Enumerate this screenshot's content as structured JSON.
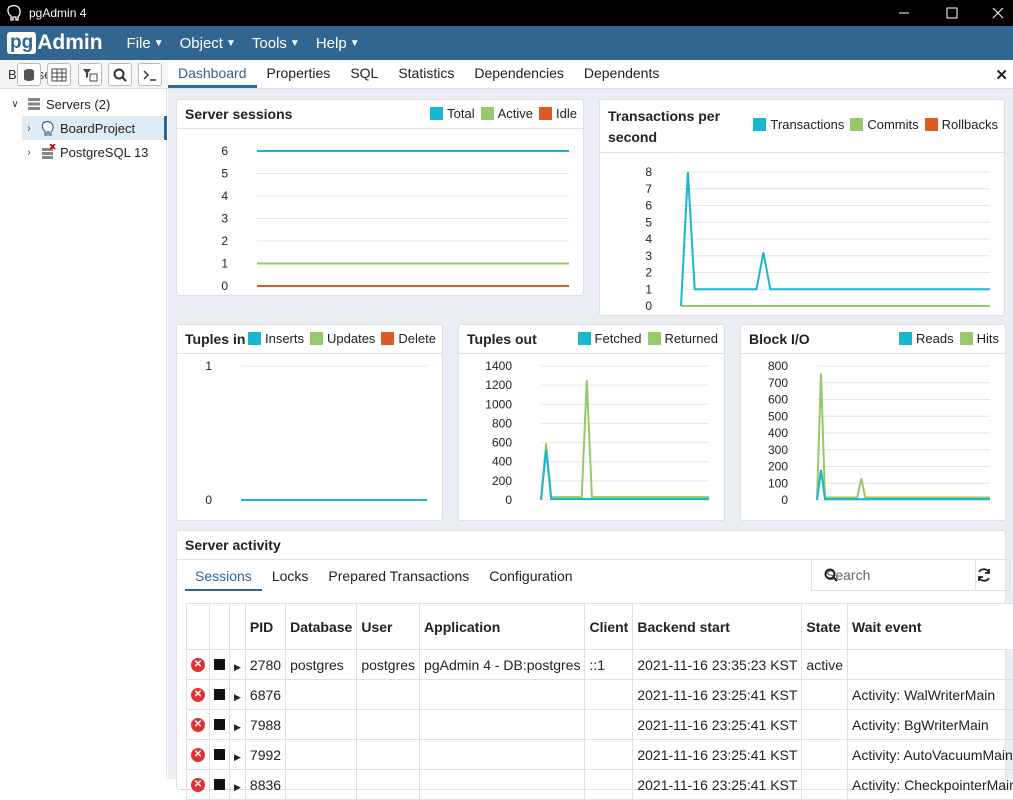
{
  "window": {
    "title": "pgAdmin 4"
  },
  "menubar": {
    "logo_pg": "pg",
    "logo_admin": "Admin",
    "items": [
      "File",
      "Object",
      "Tools",
      "Help"
    ]
  },
  "browser": {
    "label": "Browser",
    "tree": [
      {
        "label": "Servers (2)"
      },
      {
        "label": "BoardProject"
      },
      {
        "label": "PostgreSQL 13"
      }
    ]
  },
  "tabs": [
    "Dashboard",
    "Properties",
    "SQL",
    "Statistics",
    "Dependencies",
    "Dependents"
  ],
  "colors": {
    "brand": "#326690",
    "total": "#17b8cf",
    "active": "#97c96a",
    "idle": "#e05a26"
  },
  "panels": {
    "sessions": {
      "title": "Server sessions",
      "legend": [
        "Total",
        "Active",
        "Idle"
      ]
    },
    "tps": {
      "title": "Transactions per second",
      "legend": [
        "Transactions",
        "Commits",
        "Rollbacks"
      ]
    },
    "tuples_in": {
      "title": "Tuples in",
      "legend": [
        "Inserts",
        "Updates",
        "Delete"
      ]
    },
    "tuples_out": {
      "title": "Tuples out",
      "legend": [
        "Fetched",
        "Returned"
      ]
    },
    "block_io": {
      "title": "Block I/O",
      "legend": [
        "Reads",
        "Hits"
      ]
    }
  },
  "chart_data": [
    {
      "type": "line",
      "title": "Server sessions",
      "ylim": [
        0,
        6
      ],
      "yticks": [
        "6",
        "5",
        "4",
        "3",
        "2",
        "1",
        "0"
      ],
      "series": [
        {
          "name": "Total",
          "values": [
            6,
            6,
            6,
            6,
            6,
            6,
            6,
            6,
            6,
            6,
            6,
            6,
            6,
            6,
            6,
            6,
            6,
            6,
            6,
            6,
            6,
            6,
            6,
            6,
            6,
            6,
            6,
            6,
            6,
            6
          ]
        },
        {
          "name": "Active",
          "values": [
            1,
            1,
            1,
            1,
            1,
            1,
            1,
            1,
            1,
            1,
            1,
            1,
            1,
            1,
            1,
            1,
            1,
            1,
            1,
            1,
            1,
            1,
            1,
            1,
            1,
            1,
            1,
            1,
            1,
            1
          ]
        },
        {
          "name": "Idle",
          "values": [
            0,
            0,
            0,
            0,
            0,
            0,
            0,
            0,
            0,
            0,
            0,
            0,
            0,
            0,
            0,
            0,
            0,
            0,
            0,
            0,
            0,
            0,
            0,
            0,
            0,
            0,
            0,
            0,
            0,
            0
          ]
        }
      ]
    },
    {
      "type": "line",
      "title": "Transactions per second",
      "ylim": [
        0,
        8
      ],
      "yticks": [
        "8",
        "7",
        "6",
        "5",
        "4",
        "3",
        "2",
        "1",
        "0"
      ],
      "series": [
        {
          "name": "Transactions",
          "values": [
            0,
            8,
            1,
            1,
            1,
            1,
            1,
            1,
            1,
            1,
            1,
            1,
            3.2,
            1,
            1,
            1,
            1,
            1,
            1,
            1,
            1,
            1,
            1,
            1,
            1,
            1,
            1,
            1,
            1,
            1,
            1,
            1,
            1,
            1,
            1,
            1,
            1,
            1,
            1,
            1,
            1,
            1,
            1,
            1,
            1,
            1
          ]
        },
        {
          "name": "Commits",
          "values": [
            0,
            0,
            0,
            0,
            0,
            0,
            0,
            0,
            0,
            0,
            0,
            0,
            0,
            0,
            0,
            0,
            0,
            0,
            0,
            0,
            0,
            0,
            0,
            0,
            0,
            0,
            0,
            0,
            0,
            0,
            0,
            0,
            0,
            0,
            0,
            0,
            0,
            0,
            0,
            0,
            0,
            0,
            0,
            0,
            0,
            0
          ]
        },
        {
          "name": "Rollbacks",
          "values": [
            0,
            0,
            0,
            0,
            0,
            0,
            0,
            0,
            0,
            0,
            0,
            0,
            0,
            0,
            0,
            0,
            0,
            0,
            0,
            0,
            0,
            0,
            0,
            0,
            0,
            0,
            0,
            0,
            0,
            0,
            0,
            0,
            0,
            0,
            0,
            0,
            0,
            0,
            0,
            0,
            0,
            0,
            0,
            0,
            0,
            0
          ]
        }
      ]
    },
    {
      "type": "line",
      "title": "Tuples in",
      "ylim": [
        0,
        1
      ],
      "yticks": [
        "1",
        "0"
      ],
      "series": [
        {
          "name": "Inserts",
          "values": [
            0,
            0,
            0,
            0,
            0,
            0,
            0,
            0,
            0,
            0,
            0,
            0,
            0,
            0,
            0,
            0,
            0,
            0,
            0,
            0
          ]
        },
        {
          "name": "Updates",
          "values": [
            0,
            0,
            0,
            0,
            0,
            0,
            0,
            0,
            0,
            0,
            0,
            0,
            0,
            0,
            0,
            0,
            0,
            0,
            0,
            0
          ]
        },
        {
          "name": "Delete",
          "values": [
            0,
            0,
            0,
            0,
            0,
            0,
            0,
            0,
            0,
            0,
            0,
            0,
            0,
            0,
            0,
            0,
            0,
            0,
            0,
            0
          ]
        }
      ]
    },
    {
      "type": "line",
      "title": "Tuples out",
      "ylim": [
        0,
        1400
      ],
      "yticks": [
        "1400",
        "1200",
        "1000",
        "800",
        "600",
        "400",
        "200",
        "0"
      ],
      "series": [
        {
          "name": "Fetched",
          "values": [
            0,
            520,
            10,
            10,
            10,
            10,
            10,
            10,
            10,
            10,
            10,
            10,
            10,
            10,
            10,
            10,
            10,
            10,
            10,
            10,
            10,
            10,
            10,
            10,
            10,
            10,
            10,
            10,
            10,
            10,
            10,
            10,
            10,
            10
          ]
        },
        {
          "name": "Returned",
          "values": [
            0,
            590,
            30,
            30,
            30,
            30,
            30,
            30,
            30,
            1250,
            30,
            30,
            30,
            30,
            30,
            30,
            30,
            30,
            30,
            30,
            30,
            30,
            30,
            30,
            30,
            30,
            30,
            30,
            30,
            30,
            30,
            30,
            30,
            30
          ]
        }
      ]
    },
    {
      "type": "line",
      "title": "Block I/O",
      "ylim": [
        0,
        800
      ],
      "yticks": [
        "800",
        "700",
        "600",
        "500",
        "400",
        "300",
        "200",
        "100",
        "0"
      ],
      "series": [
        {
          "name": "Reads",
          "values": [
            0,
            180,
            5,
            5,
            5,
            5,
            5,
            5,
            5,
            5,
            5,
            5,
            5,
            5,
            5,
            5,
            5,
            5,
            5,
            5,
            5,
            5,
            5,
            5,
            5,
            5,
            5,
            5,
            5,
            5,
            5,
            5,
            5,
            5,
            5,
            5,
            5,
            5,
            5,
            5,
            5,
            5,
            5,
            5
          ]
        },
        {
          "name": "Hits",
          "values": [
            0,
            755,
            15,
            15,
            15,
            15,
            15,
            15,
            15,
            15,
            15,
            130,
            15,
            15,
            15,
            15,
            15,
            15,
            15,
            15,
            15,
            15,
            15,
            15,
            15,
            15,
            15,
            15,
            15,
            15,
            15,
            15,
            15,
            15,
            15,
            15,
            15,
            15,
            15,
            15,
            15,
            15,
            15,
            15
          ]
        }
      ]
    }
  ],
  "activity": {
    "title": "Server activity",
    "tabs": [
      "Sessions",
      "Locks",
      "Prepared Transactions",
      "Configuration"
    ],
    "search_placeholder": "Search",
    "columns": [
      "",
      "",
      "",
      "PID",
      "Database",
      "User",
      "Application",
      "Client",
      "Backend start",
      "State",
      "Wait event"
    ],
    "rows": [
      {
        "pid": "2780",
        "db": "postgres",
        "user": "postgres",
        "app": "pgAdmin 4 - DB:postgres",
        "client": "::1",
        "start": "2021-11-16 23:35:23 KST",
        "state": "active",
        "wait": ""
      },
      {
        "pid": "6876",
        "db": "",
        "user": "",
        "app": "",
        "client": "",
        "start": "2021-11-16 23:25:41 KST",
        "state": "",
        "wait": "Activity: WalWriterMain"
      },
      {
        "pid": "7988",
        "db": "",
        "user": "",
        "app": "",
        "client": "",
        "start": "2021-11-16 23:25:41 KST",
        "state": "",
        "wait": "Activity: BgWriterMain"
      },
      {
        "pid": "7992",
        "db": "",
        "user": "",
        "app": "",
        "client": "",
        "start": "2021-11-16 23:25:41 KST",
        "state": "",
        "wait": "Activity: AutoVacuumMain"
      },
      {
        "pid": "8836",
        "db": "",
        "user": "",
        "app": "",
        "client": "",
        "start": "2021-11-16 23:25:41 KST",
        "state": "",
        "wait": "Activity: CheckpointerMain"
      }
    ]
  }
}
